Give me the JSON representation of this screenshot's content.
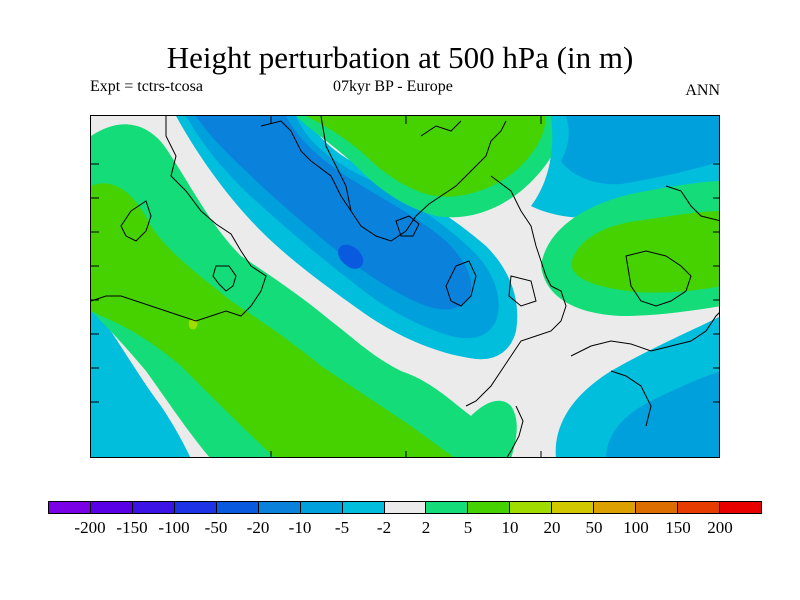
{
  "title": "Height perturbation at 500 hPa (in m)",
  "subtitle_left": "Expt = tctrs-tcosa",
  "subtitle_center": "07kyr BP - Europe",
  "subtitle_right": "ANN",
  "colorbar": {
    "colors": [
      "#7a00e6",
      "#5a00e6",
      "#3c14e6",
      "#1e32e6",
      "#0a5ae0",
      "#0a82dc",
      "#00a0dc",
      "#00bedc",
      "#ebebeb",
      "#14dc78",
      "#46d200",
      "#a0dc00",
      "#d2c800",
      "#dca000",
      "#dc6e00",
      "#e63c00",
      "#e60000"
    ],
    "labels": [
      "-200",
      "-150",
      "-100",
      "-50",
      "-20",
      "-10",
      "-5",
      "-2",
      "2",
      "5",
      "10",
      "20",
      "50",
      "100",
      "150",
      "200"
    ]
  },
  "palette": {
    "neutral": "#ebebeb",
    "pos5": "#14dc78",
    "pos10": "#46d200",
    "pos20": "#a0dc00",
    "neg2": "#00bedc",
    "neg5": "#00a0dc",
    "neg10": "#0a82dc",
    "neg20": "#0a5ae0"
  }
}
